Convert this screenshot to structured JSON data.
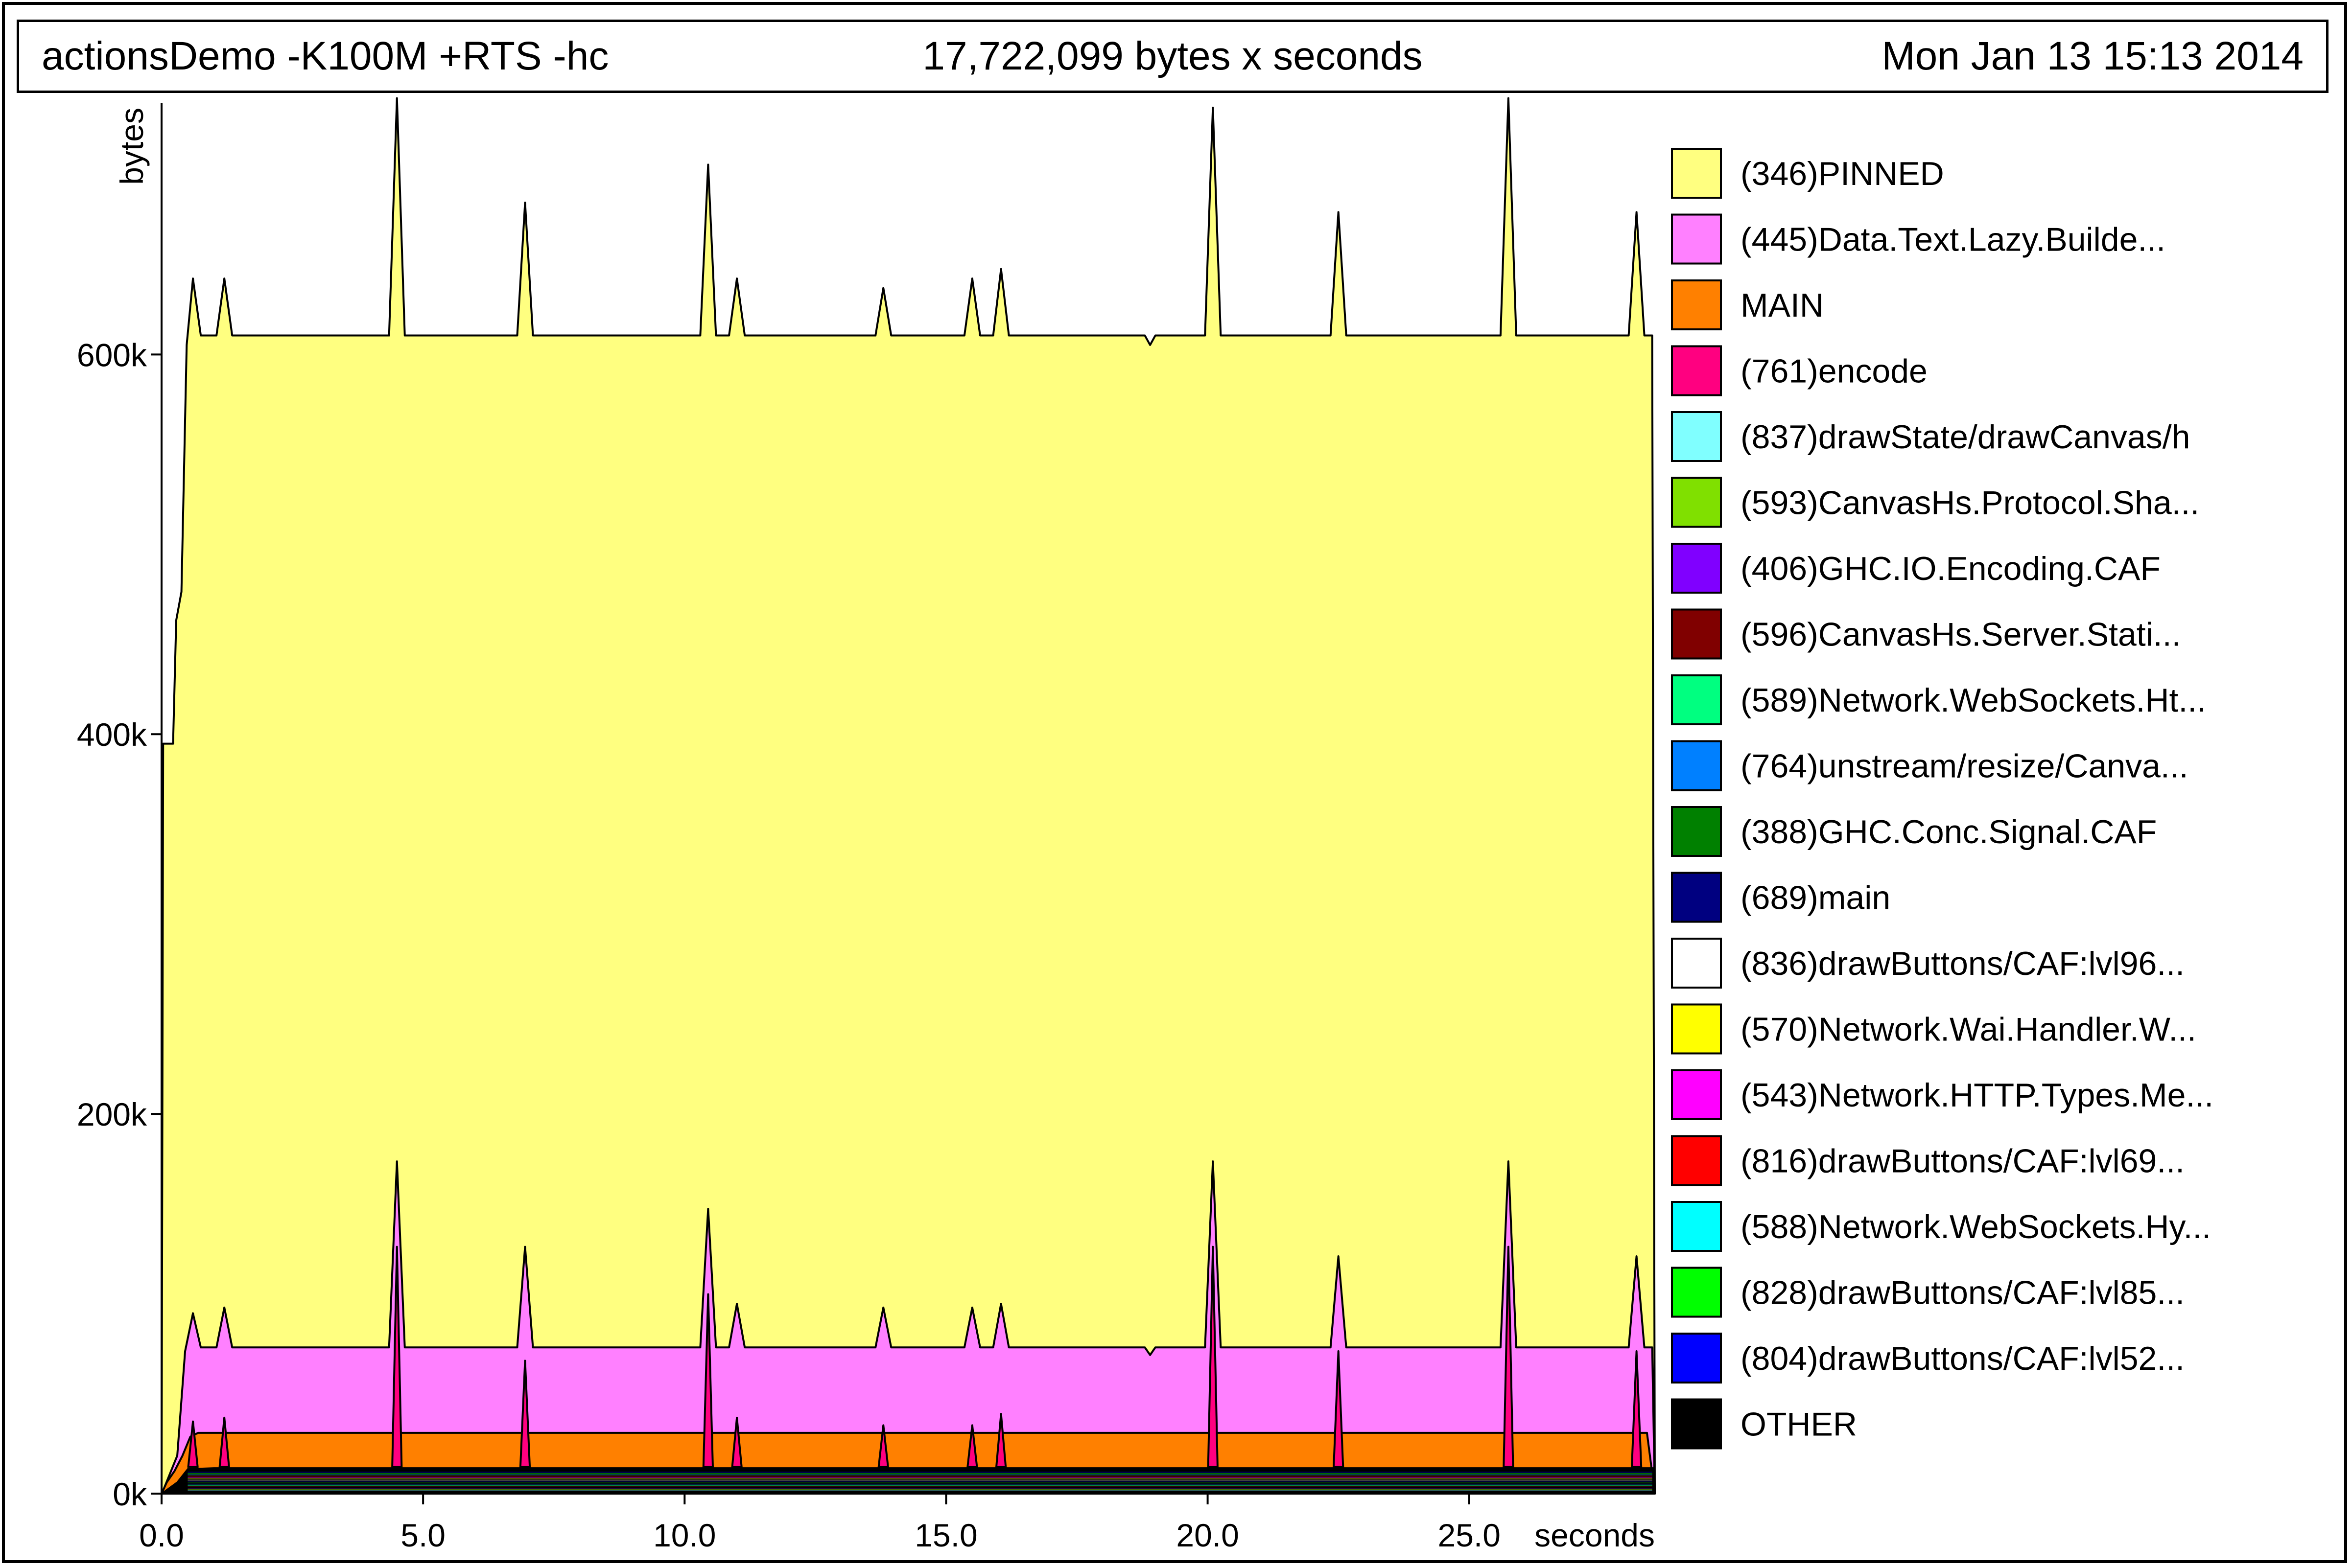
{
  "header": {
    "command": "actionsDemo -K100M +RTS -hc",
    "total": "17,722,099 bytes x seconds",
    "date": "Mon Jan 13 15:13 2014"
  },
  "chart_data": {
    "type": "area",
    "stacked": true,
    "title": "actionsDemo -K100M +RTS -hc",
    "xlabel": "seconds",
    "ylabel": "bytes",
    "xlim": [
      0,
      28.55
    ],
    "ylim": [
      0,
      730000
    ],
    "x_ticks": [
      {
        "value": 0,
        "label": "0.0"
      },
      {
        "value": 5,
        "label": "5.0"
      },
      {
        "value": 10,
        "label": "10.0"
      },
      {
        "value": 15,
        "label": "15.0"
      },
      {
        "value": 20,
        "label": "20.0"
      },
      {
        "value": 25,
        "label": "25.0"
      }
    ],
    "y_ticks": [
      {
        "value": 0,
        "label": "0k"
      },
      {
        "value": 200000,
        "label": "200k"
      },
      {
        "value": 400000,
        "label": "400k"
      },
      {
        "value": 600000,
        "label": "600k"
      }
    ],
    "grid": false,
    "legend_position": "right",
    "layer_boundaries": [
      {
        "name": "black-top",
        "values": [
          [
            0,
            0
          ],
          [
            0.1,
            2000
          ],
          [
            0.3,
            6000
          ],
          [
            0.5,
            13000
          ],
          [
            1.0,
            13500
          ],
          [
            28.4,
            13500
          ],
          [
            28.55,
            13500
          ]
        ]
      },
      {
        "name": "orange-top",
        "values": [
          [
            0,
            0
          ],
          [
            0.1,
            6000
          ],
          [
            0.25,
            12000
          ],
          [
            0.4,
            20000
          ],
          [
            0.55,
            30000
          ],
          [
            0.7,
            32000
          ],
          [
            28.4,
            32000
          ],
          [
            28.55,
            0
          ]
        ]
      },
      {
        "name": "pink-top",
        "values": [
          [
            0,
            0
          ],
          [
            0.05,
            3000
          ],
          [
            0.3,
            20000
          ],
          [
            0.45,
            75000
          ],
          [
            0.6,
            95000
          ],
          [
            0.75,
            77000
          ],
          [
            1.05,
            77000
          ],
          [
            1.2,
            98000
          ],
          [
            1.35,
            77000
          ],
          [
            4.35,
            77000
          ],
          [
            4.5,
            175000
          ],
          [
            4.65,
            77000
          ],
          [
            6.8,
            77000
          ],
          [
            6.95,
            130000
          ],
          [
            7.1,
            77000
          ],
          [
            10.3,
            77000
          ],
          [
            10.45,
            150000
          ],
          [
            10.6,
            77000
          ],
          [
            10.85,
            77000
          ],
          [
            11.0,
            100000
          ],
          [
            11.15,
            77000
          ],
          [
            13.65,
            77000
          ],
          [
            13.8,
            98000
          ],
          [
            13.95,
            77000
          ],
          [
            15.35,
            77000
          ],
          [
            15.5,
            98000
          ],
          [
            15.65,
            77000
          ],
          [
            15.9,
            77000
          ],
          [
            16.05,
            100000
          ],
          [
            16.2,
            77000
          ],
          [
            18.8,
            77000
          ],
          [
            18.9,
            73000
          ],
          [
            19.0,
            77000
          ],
          [
            19.95,
            77000
          ],
          [
            20.1,
            175000
          ],
          [
            20.25,
            77000
          ],
          [
            22.35,
            77000
          ],
          [
            22.5,
            125000
          ],
          [
            22.65,
            77000
          ],
          [
            25.6,
            77000
          ],
          [
            25.75,
            175000
          ],
          [
            25.9,
            77000
          ],
          [
            28.05,
            77000
          ],
          [
            28.2,
            125000
          ],
          [
            28.35,
            77000
          ],
          [
            28.5,
            77000
          ],
          [
            28.55,
            0
          ]
        ]
      },
      {
        "name": "yellow-top",
        "values": [
          [
            0,
            0
          ],
          [
            0.03,
            395000
          ],
          [
            0.22,
            395000
          ],
          [
            0.28,
            460000
          ],
          [
            0.38,
            475000
          ],
          [
            0.48,
            605000
          ],
          [
            0.6,
            640000
          ],
          [
            0.75,
            610000
          ],
          [
            1.05,
            610000
          ],
          [
            1.2,
            640000
          ],
          [
            1.35,
            610000
          ],
          [
            4.35,
            610000
          ],
          [
            4.5,
            735000
          ],
          [
            4.65,
            610000
          ],
          [
            6.8,
            610000
          ],
          [
            6.95,
            680000
          ],
          [
            7.1,
            610000
          ],
          [
            10.3,
            610000
          ],
          [
            10.45,
            700000
          ],
          [
            10.6,
            610000
          ],
          [
            10.85,
            610000
          ],
          [
            11.0,
            640000
          ],
          [
            11.15,
            610000
          ],
          [
            13.65,
            610000
          ],
          [
            13.8,
            635000
          ],
          [
            13.95,
            610000
          ],
          [
            15.35,
            610000
          ],
          [
            15.5,
            640000
          ],
          [
            15.65,
            610000
          ],
          [
            15.9,
            610000
          ],
          [
            16.05,
            645000
          ],
          [
            16.2,
            610000
          ],
          [
            18.8,
            610000
          ],
          [
            18.9,
            605000
          ],
          [
            19.0,
            610000
          ],
          [
            19.95,
            610000
          ],
          [
            20.1,
            730000
          ],
          [
            20.25,
            610000
          ],
          [
            22.35,
            610000
          ],
          [
            22.5,
            675000
          ],
          [
            22.65,
            610000
          ],
          [
            25.6,
            610000
          ],
          [
            25.75,
            735000
          ],
          [
            25.9,
            610000
          ],
          [
            28.05,
            610000
          ],
          [
            28.2,
            675000
          ],
          [
            28.35,
            610000
          ],
          [
            28.5,
            610000
          ],
          [
            28.55,
            0
          ]
        ]
      }
    ],
    "spikes": [
      {
        "name": "(761)encode",
        "values": [
          [
            0.6,
            38000
          ],
          [
            1.2,
            40000
          ],
          [
            4.5,
            130000
          ],
          [
            6.95,
            70000
          ],
          [
            10.45,
            105000
          ],
          [
            11.0,
            40000
          ],
          [
            13.8,
            36000
          ],
          [
            15.5,
            36000
          ],
          [
            16.05,
            42000
          ],
          [
            20.1,
            130000
          ],
          [
            22.5,
            75000
          ],
          [
            25.75,
            130000
          ],
          [
            28.2,
            75000
          ]
        ]
      }
    ],
    "legend": [
      {
        "name": "(346)PINNED",
        "color": "#ffff80"
      },
      {
        "name": "(445)Data.Text.Lazy.Builde...",
        "color": "#ff80ff"
      },
      {
        "name": "MAIN",
        "color": "#ff8000"
      },
      {
        "name": "(761)encode",
        "color": "#ff0080"
      },
      {
        "name": "(837)drawState/drawCanvas/h",
        "color": "#80ffff"
      },
      {
        "name": "(593)CanvasHs.Protocol.Sha...",
        "color": "#80e000"
      },
      {
        "name": "(406)GHC.IO.Encoding.CAF",
        "color": "#8000ff"
      },
      {
        "name": "(596)CanvasHs.Server.Stati...",
        "color": "#800000"
      },
      {
        "name": "(589)Network.WebSockets.Ht...",
        "color": "#00ff80"
      },
      {
        "name": "(764)unstream/resize/Canva...",
        "color": "#0080ff"
      },
      {
        "name": "(388)GHC.Conc.Signal.CAF",
        "color": "#008000"
      },
      {
        "name": "(689)main",
        "color": "#000080"
      },
      {
        "name": "(836)drawButtons/CAF:lvl96...",
        "color": "#ffffff"
      },
      {
        "name": "(570)Network.Wai.Handler.W...",
        "color": "#ffff00"
      },
      {
        "name": "(543)Network.HTTP.Types.Me...",
        "color": "#ff00ff"
      },
      {
        "name": "(816)drawButtons/CAF:lvl69...",
        "color": "#ff0000"
      },
      {
        "name": "(588)Network.WebSockets.Hy...",
        "color": "#00ffff"
      },
      {
        "name": "(828)drawButtons/CAF:lvl85...",
        "color": "#00ff00"
      },
      {
        "name": "(804)drawButtons/CAF:lvl52...",
        "color": "#0000ff"
      },
      {
        "name": "OTHER",
        "color": "#000000"
      }
    ]
  }
}
